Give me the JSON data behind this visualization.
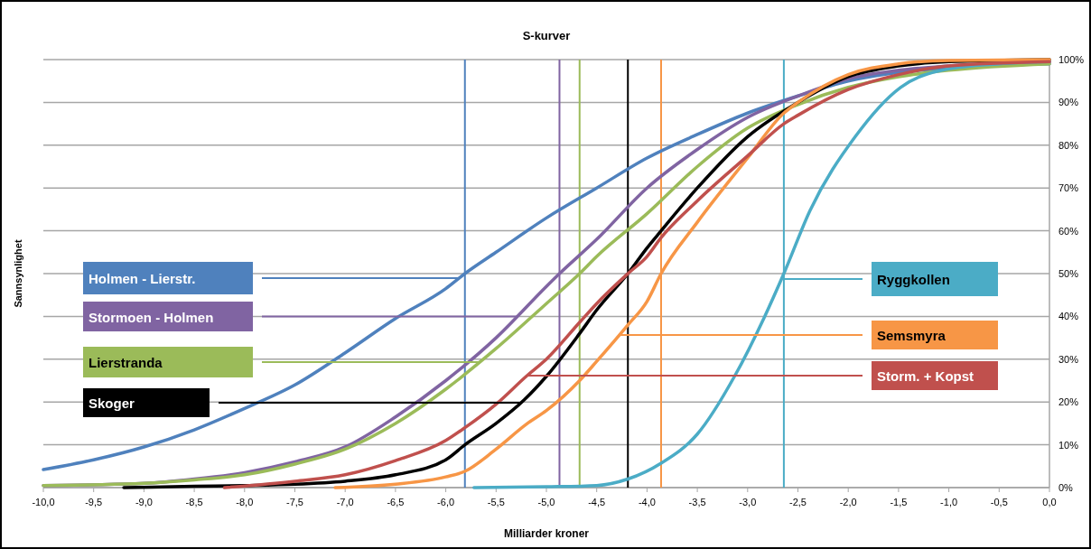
{
  "chart_data": {
    "type": "line",
    "title": "S-kurver",
    "xlabel": "Milliarder kroner",
    "ylabel": "Sannsynlighet",
    "xlim": [
      -10,
      0
    ],
    "ylim": [
      0,
      100
    ],
    "xticks": [
      {
        "value": -10,
        "label": "-10,0"
      },
      {
        "value": -9.5,
        "label": "-9,5"
      },
      {
        "value": -9,
        "label": "-9,0"
      },
      {
        "value": -8.5,
        "label": "-8,5"
      },
      {
        "value": -8,
        "label": "-8,0"
      },
      {
        "value": -7.5,
        "label": "-7,5"
      },
      {
        "value": -7,
        "label": "-7,0"
      },
      {
        "value": -6.5,
        "label": "-6,5"
      },
      {
        "value": -6,
        "label": "-6,0"
      },
      {
        "value": -5.5,
        "label": "-5,5"
      },
      {
        "value": -5,
        "label": "-5,0"
      },
      {
        "value": -4.5,
        "label": "-4,5"
      },
      {
        "value": -4,
        "label": "-4,0"
      },
      {
        "value": -3.5,
        "label": "-3,5"
      },
      {
        "value": -3,
        "label": "-3,0"
      },
      {
        "value": -2.5,
        "label": "-2,5"
      },
      {
        "value": -2,
        "label": "-2,0"
      },
      {
        "value": -1.5,
        "label": "-1,5"
      },
      {
        "value": -1,
        "label": "-1,0"
      },
      {
        "value": -0.5,
        "label": "-0,5"
      },
      {
        "value": 0,
        "label": "0,0"
      }
    ],
    "yticks": [
      {
        "value": 0,
        "label": "0%"
      },
      {
        "value": 10,
        "label": "10%"
      },
      {
        "value": 20,
        "label": "20%"
      },
      {
        "value": 30,
        "label": "30%"
      },
      {
        "value": 40,
        "label": "40%"
      },
      {
        "value": 50,
        "label": "50%"
      },
      {
        "value": 60,
        "label": "60%"
      },
      {
        "value": 70,
        "label": "70%"
      },
      {
        "value": 80,
        "label": "80%"
      },
      {
        "value": 90,
        "label": "90%"
      },
      {
        "value": 100,
        "label": "100%"
      }
    ],
    "grid": "y",
    "marker": "none",
    "line_style": "solid",
    "series": [
      {
        "name": "Holmen - Lierstr.",
        "color": "#4f81bd",
        "x": [
          -10,
          -9.5,
          -9,
          -8.5,
          -8,
          -7.5,
          -7,
          -6.5,
          -6,
          -5.81,
          -5.5,
          -5,
          -4.5,
          -4,
          -3.5,
          -3,
          -2.5,
          -2,
          -1.5,
          -1,
          -0.5,
          0
        ],
        "values": [
          4.2,
          6.5,
          9.5,
          13.5,
          18.5,
          24,
          31.5,
          39.5,
          46.5,
          50,
          55,
          63,
          70,
          77,
          82.5,
          87.5,
          91.5,
          95,
          97,
          98,
          98.7,
          99
        ]
      },
      {
        "name": "Stormoen - Holmen",
        "color": "#8064a2",
        "x": [
          -10,
          -9,
          -8.5,
          -8,
          -7.5,
          -7,
          -6.5,
          -6,
          -5.5,
          -5,
          -4.87,
          -4.5,
          -4,
          -3.5,
          -3,
          -2.5,
          -2,
          -1.5,
          -1,
          0
        ],
        "values": [
          0.5,
          1,
          2,
          3.5,
          6,
          9.5,
          16.5,
          25,
          35,
          47,
          50,
          58,
          70,
          79,
          86.5,
          91.5,
          95.5,
          97.5,
          98.5,
          99.5
        ]
      },
      {
        "name": "Lierstranda",
        "color": "#9bbb59",
        "x": [
          -10,
          -9,
          -8.5,
          -8,
          -7.5,
          -7,
          -6.5,
          -6,
          -5.5,
          -5,
          -4.67,
          -4.5,
          -4,
          -3.5,
          -3,
          -2.5,
          -2,
          -1.5,
          -1,
          0
        ],
        "values": [
          0.5,
          1,
          1.8,
          3,
          5.5,
          9,
          15,
          23,
          32.5,
          43,
          50,
          54,
          64,
          75,
          84,
          89.5,
          93.5,
          96,
          97.5,
          99
        ]
      },
      {
        "name": "Skoger",
        "color": "#000000",
        "x": [
          -9.2,
          -8.5,
          -8,
          -7.5,
          -7,
          -6.5,
          -6,
          -5.81,
          -5.5,
          -5.22,
          -5,
          -4.67,
          -4.5,
          -4.19,
          -4,
          -3.86,
          -3.5,
          -3,
          -2.5,
          -2,
          -1.5,
          -1,
          0
        ],
        "values": [
          0,
          0.3,
          0.5,
          0.8,
          1.5,
          3,
          6.5,
          10,
          15,
          20.5,
          26,
          36,
          41.5,
          50,
          56,
          60,
          70,
          82,
          90,
          96,
          98.5,
          99.5,
          100
        ]
      },
      {
        "name": "Ryggkollen",
        "color": "#4bacc6",
        "x": [
          -5.72,
          -5,
          -4.5,
          -4.19,
          -3.86,
          -3.5,
          -3.13,
          -2.83,
          -2.64,
          -2.38,
          -1.93,
          -1.48,
          -1.03,
          -0.5,
          0
        ],
        "values": [
          0,
          0.2,
          0.5,
          2,
          5.7,
          12.5,
          26,
          40,
          50,
          64.7,
          82,
          93.5,
          97.7,
          99,
          99.5
        ]
      },
      {
        "name": "Semsmyra",
        "color": "#f79646",
        "x": [
          -7.1,
          -6.5,
          -6,
          -5.81,
          -5.5,
          -5.2,
          -5,
          -4.67,
          -4.5,
          -4.19,
          -4,
          -3.86,
          -3.5,
          -3,
          -2.64,
          -2.5,
          -2,
          -1.5,
          -1,
          0
        ],
        "values": [
          0,
          0.8,
          2.5,
          3.8,
          9,
          14.8,
          18,
          25,
          29.5,
          38,
          43.5,
          50,
          62,
          77,
          87.5,
          90,
          96.5,
          99,
          99.8,
          100
        ]
      },
      {
        "name": "Storm. + Kopst",
        "color": "#c0504d",
        "x": [
          -8.2,
          -7.5,
          -7,
          -6.5,
          -6,
          -5.81,
          -5.5,
          -5.2,
          -5,
          -4.67,
          -4.5,
          -4.19,
          -4,
          -3.86,
          -3.5,
          -3,
          -2.64,
          -2.5,
          -2,
          -1.5,
          -1,
          0
        ],
        "values": [
          0,
          1.5,
          3,
          6.3,
          11,
          14,
          19.5,
          26,
          30,
          38.6,
          43,
          50,
          54,
          58.4,
          67,
          77.5,
          85,
          87,
          93,
          96.5,
          98.5,
          99.5
        ]
      }
    ],
    "ref_lines": [
      {
        "axis": "x",
        "value": -5.81,
        "color": "#4f81bd"
      },
      {
        "axis": "x",
        "value": -4.87,
        "color": "#8064a2"
      },
      {
        "axis": "x",
        "value": -4.67,
        "color": "#9bbb59"
      },
      {
        "axis": "x",
        "value": -4.19,
        "color": "#000000"
      },
      {
        "axis": "x",
        "value": -3.86,
        "color": "#f79646"
      },
      {
        "axis": "x",
        "value": -2.64,
        "color": "#4bacc6"
      }
    ]
  }
}
